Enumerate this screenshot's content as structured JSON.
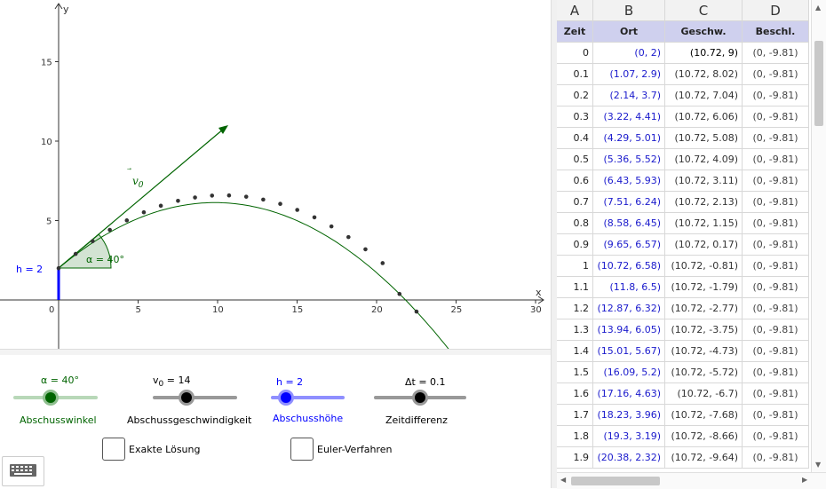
{
  "graph": {
    "axis_x_label": "x",
    "axis_y_label": "y",
    "x_ticks": [
      "0",
      "5",
      "10",
      "15",
      "20",
      "25",
      "30"
    ],
    "y_ticks": [
      "5",
      "10",
      "15"
    ],
    "h_label": "h = 2",
    "alpha_label": "α = 40°",
    "v0_vector_label": "v0",
    "trajectory_color": "#006400",
    "h_color": "#0000ff"
  },
  "controls": {
    "alpha": {
      "value_label": "α = 40°",
      "name": "Abschusswinkel",
      "fraction": 0.44,
      "color": "#006400"
    },
    "v0": {
      "value_label": "v0 = 14",
      "name": "Abschussgeschwindigkeit",
      "fraction": 0.4,
      "color": "#000000"
    },
    "h": {
      "value_label": "h = 2",
      "name": "Abschusshöhe",
      "fraction": 0.2,
      "color": "#0000ff"
    },
    "dt": {
      "value_label": "Δt = 0.1",
      "name": "Zeitdifferenz",
      "fraction": 0.5,
      "color": "#000000"
    },
    "exact_label": "Exakte Lösung",
    "euler_label": "Euler-Verfahren"
  },
  "sheet": {
    "col_letters": [
      "A",
      "B",
      "C",
      "D"
    ],
    "headers": [
      "Zeit",
      "Ort",
      "Geschw.",
      "Beschl."
    ],
    "rows": [
      [
        "0",
        "(0, 2)",
        "(10.72, 9)",
        "(0, -9.81)"
      ],
      [
        "0.1",
        "(1.07, 2.9)",
        "(10.72, 8.02)",
        "(0, -9.81)"
      ],
      [
        "0.2",
        "(2.14, 3.7)",
        "(10.72, 7.04)",
        "(0, -9.81)"
      ],
      [
        "0.3",
        "(3.22, 4.41)",
        "(10.72, 6.06)",
        "(0, -9.81)"
      ],
      [
        "0.4",
        "(4.29, 5.01)",
        "(10.72, 5.08)",
        "(0, -9.81)"
      ],
      [
        "0.5",
        "(5.36, 5.52)",
        "(10.72, 4.09)",
        "(0, -9.81)"
      ],
      [
        "0.6",
        "(6.43, 5.93)",
        "(10.72, 3.11)",
        "(0, -9.81)"
      ],
      [
        "0.7",
        "(7.51, 6.24)",
        "(10.72, 2.13)",
        "(0, -9.81)"
      ],
      [
        "0.8",
        "(8.58, 6.45)",
        "(10.72, 1.15)",
        "(0, -9.81)"
      ],
      [
        "0.9",
        "(9.65, 6.57)",
        "(10.72, 0.17)",
        "(0, -9.81)"
      ],
      [
        "1",
        "(10.72, 6.58)",
        "(10.72, -0.81)",
        "(0, -9.81)"
      ],
      [
        "1.1",
        "(11.8, 6.5)",
        "(10.72, -1.79)",
        "(0, -9.81)"
      ],
      [
        "1.2",
        "(12.87, 6.32)",
        "(10.72, -2.77)",
        "(0, -9.81)"
      ],
      [
        "1.3",
        "(13.94, 6.05)",
        "(10.72, -3.75)",
        "(0, -9.81)"
      ],
      [
        "1.4",
        "(15.01, 5.67)",
        "(10.72, -4.73)",
        "(0, -9.81)"
      ],
      [
        "1.5",
        "(16.09, 5.2)",
        "(10.72, -5.72)",
        "(0, -9.81)"
      ],
      [
        "1.6",
        "(17.16, 4.63)",
        "(10.72, -6.7)",
        "(0, -9.81)"
      ],
      [
        "1.7",
        "(18.23, 3.96)",
        "(10.72, -7.68)",
        "(0, -9.81)"
      ],
      [
        "1.8",
        "(19.3, 3.19)",
        "(10.72, -8.66)",
        "(0, -9.81)"
      ],
      [
        "1.9",
        "(20.38, 2.32)",
        "(10.72, -9.64)",
        "(0, -9.81)"
      ]
    ]
  }
}
